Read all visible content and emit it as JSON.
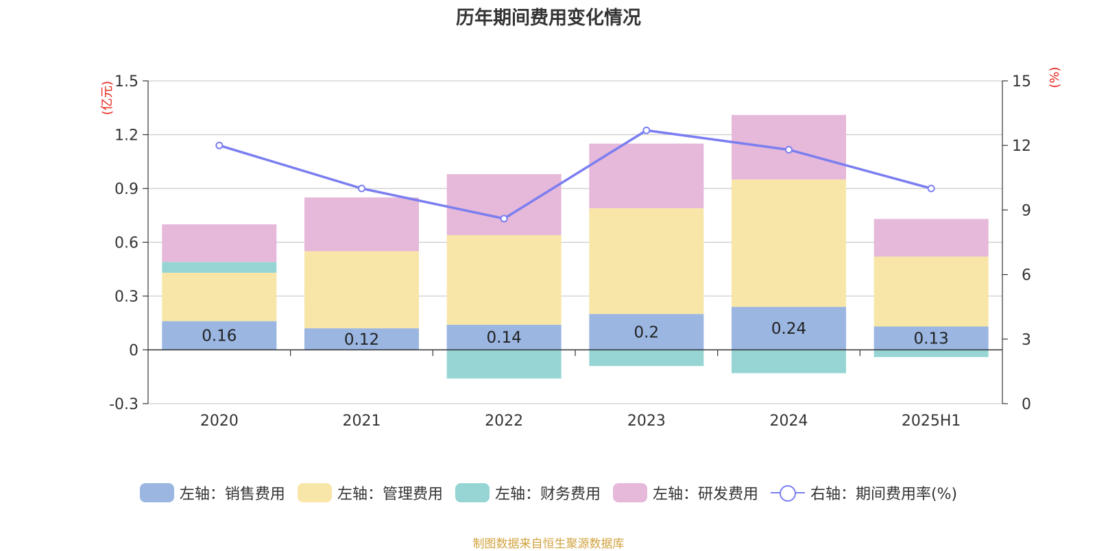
{
  "title": "历年期间费用变化情况",
  "source": "制图数据来自恒生聚源数据库",
  "chart_data": {
    "type": "bar",
    "stacked": true,
    "categories": [
      "2020",
      "2021",
      "2022",
      "2023",
      "2024",
      "2025H1"
    ],
    "series": [
      {
        "name": "左轴：销售费用",
        "axis": "left",
        "color": "#9ab6e1",
        "values": [
          0.16,
          0.12,
          0.14,
          0.2,
          0.24,
          0.13
        ]
      },
      {
        "name": "左轴：管理费用",
        "axis": "left",
        "color": "#f8e6a8",
        "values": [
          0.27,
          0.43,
          0.5,
          0.59,
          0.71,
          0.39
        ]
      },
      {
        "name": "左轴：财务费用",
        "axis": "left",
        "color": "#96d5d4",
        "values": [
          0.06,
          0.0,
          -0.16,
          -0.09,
          -0.13,
          -0.04
        ]
      },
      {
        "name": "左轴：研发费用",
        "axis": "left",
        "color": "#e6b8d9",
        "values": [
          0.21,
          0.3,
          0.34,
          0.36,
          0.36,
          0.21
        ]
      },
      {
        "name": "右轴：期间费用率(%)",
        "axis": "right",
        "type": "line",
        "color": "#7a7ef0",
        "values": [
          12.0,
          10.0,
          8.6,
          12.7,
          11.8,
          10.0
        ]
      }
    ],
    "data_label_series": "左轴：销售费用",
    "y_left": {
      "unit": "(亿元)",
      "lim": [
        -0.3,
        1.5
      ],
      "ticks": [
        -0.3,
        0,
        0.3,
        0.6,
        0.9,
        1.2,
        1.5
      ],
      "tick_labels": [
        "-0.3",
        "0",
        "0.3",
        "0.6",
        "0.9",
        "1.2",
        "1.5"
      ]
    },
    "y_right": {
      "unit": "(%)",
      "lim": [
        0,
        15
      ],
      "ticks": [
        0,
        3,
        6,
        9,
        12,
        15
      ],
      "tick_labels": [
        "0",
        "3",
        "6",
        "9",
        "12",
        "15"
      ]
    },
    "grid": true,
    "legend_position": "bottom"
  }
}
